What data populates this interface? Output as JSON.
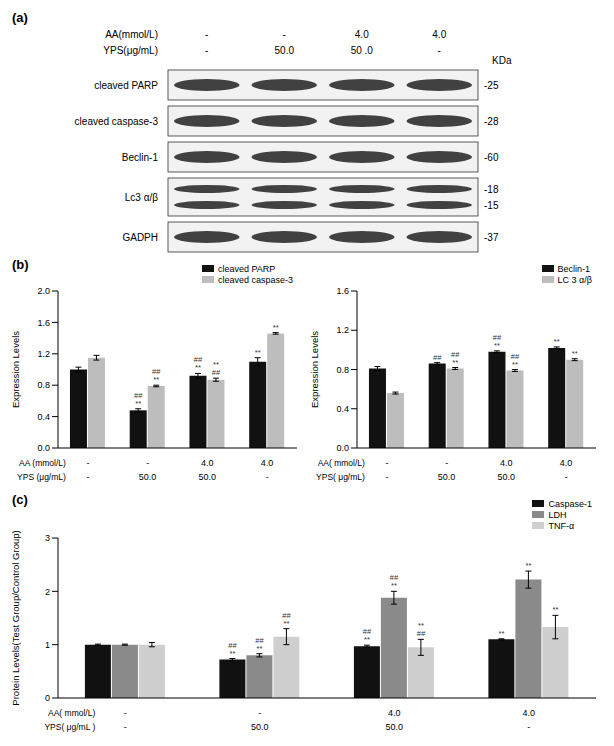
{
  "chart_data": [
    {
      "type": "western_blot",
      "title": "(a)",
      "conditions": [
        {
          "label": "AA(mmol/L)",
          "values": [
            "-",
            "-",
            "4.0",
            "4.0"
          ]
        },
        {
          "label": "YPS(μg/mL)",
          "values": [
            "-",
            "50.0",
            "50 .0",
            "-"
          ]
        }
      ],
      "unit_label": "KDa",
      "proteins": [
        {
          "name": "cleaved PARP",
          "mw": [
            "-25"
          ]
        },
        {
          "name": "cleaved caspase-3",
          "mw": [
            "-28"
          ]
        },
        {
          "name": "Beclin-1",
          "mw": [
            "-60"
          ]
        },
        {
          "name": "Lc3 α/β",
          "mw": [
            "-18",
            "-15"
          ]
        },
        {
          "name": "GADPH",
          "mw": [
            "-37"
          ]
        }
      ]
    },
    {
      "type": "bar",
      "title": "(b)",
      "y_label": "Expression Levels",
      "x_rows": [
        {
          "label": "AA (mmol/L)",
          "values": [
            "-",
            "-",
            "4.0",
            "4.0"
          ]
        },
        {
          "label": "YPS (μg/mL)",
          "values": [
            "-",
            "50.0",
            "50.0",
            "-"
          ]
        }
      ],
      "ylim": [
        0,
        2
      ],
      "yticks": [
        {
          "value": 0,
          "label": "0.0"
        },
        0.4,
        0.8,
        1.2,
        1.6,
        {
          "value": 2,
          "label": "2.0"
        }
      ],
      "legend": "upper right",
      "series": [
        {
          "name": "cleaved PARP",
          "color": "#111111",
          "values": [
            1.0,
            0.48,
            0.92,
            1.1
          ],
          "errors": [
            0.03,
            0.02,
            0.03,
            0.05
          ],
          "annotations": [
            null,
            [
              "##",
              "**"
            ],
            [
              "##",
              "**"
            ],
            [
              "**"
            ]
          ]
        },
        {
          "name": "cleaved caspase-3",
          "color": "#bdbdbd",
          "values": [
            1.15,
            0.79,
            0.87,
            1.46
          ],
          "errors": [
            0.03,
            0.01,
            0.02,
            0.01
          ],
          "annotations": [
            null,
            [
              "##",
              "**"
            ],
            [
              "**",
              "##"
            ],
            [
              "**"
            ]
          ]
        }
      ]
    },
    {
      "type": "bar",
      "y_label": "Expression Levels",
      "x_rows": [
        {
          "label": "AA( mmol/L)",
          "values": [
            "-",
            "-",
            "4.0",
            "4.0"
          ]
        },
        {
          "label": "YPS( μg/mL)",
          "values": [
            "-",
            "50.0",
            "50.0",
            "-"
          ]
        }
      ],
      "ylim": [
        0,
        1.6
      ],
      "yticks": [
        {
          "value": 0,
          "label": "0.0"
        },
        0.4,
        0.8,
        1.2,
        1.6
      ],
      "legend": "upper right",
      "series": [
        {
          "name": "Beclin-1",
          "color": "#111111",
          "values": [
            0.81,
            0.86,
            0.98,
            1.02
          ],
          "errors": [
            0.02,
            0.01,
            0.01,
            0.01
          ],
          "annotations": [
            null,
            [
              "##"
            ],
            [
              "##",
              "**"
            ],
            [
              "**"
            ]
          ]
        },
        {
          "name": "LC 3 α/β",
          "color": "#bdbdbd",
          "values": [
            0.56,
            0.81,
            0.79,
            0.9
          ],
          "errors": [
            0.01,
            0.01,
            0.01,
            0.01
          ],
          "annotations": [
            null,
            [
              "##",
              "**"
            ],
            [
              "##",
              "**"
            ],
            [
              "**"
            ]
          ]
        }
      ]
    },
    {
      "type": "bar",
      "title": "(c)",
      "y_label": "Protein Levels(Test Group/Control Group)",
      "x_rows": [
        {
          "label": "AA( mmol/L)",
          "values": [
            "-",
            "-",
            "4.0",
            "4.0"
          ]
        },
        {
          "label": "YPS( μg/mL )",
          "values": [
            "-",
            "50.0",
            "50.0",
            "-"
          ]
        }
      ],
      "ylim": [
        0,
        3
      ],
      "yticks": [
        0,
        1,
        2,
        3
      ],
      "legend": "upper right",
      "series": [
        {
          "name": "Caspase-1",
          "color": "#111111",
          "values": [
            1.0,
            0.72,
            0.97,
            1.1
          ],
          "errors": [
            0.01,
            0.02,
            0.02,
            0.01
          ],
          "annotations": [
            null,
            [
              "##",
              "**"
            ],
            [
              "##",
              "**"
            ],
            [
              "**"
            ]
          ]
        },
        {
          "name": "LDH",
          "color": "#8a8a8a",
          "values": [
            1.0,
            0.8,
            1.88,
            2.22
          ],
          "errors": [
            0.01,
            0.03,
            0.12,
            0.16
          ],
          "annotations": [
            null,
            [
              "##",
              "**"
            ],
            [
              "##",
              "**"
            ],
            [
              "**"
            ]
          ]
        },
        {
          "name": "TNF-α",
          "color": "#cfcfcf",
          "values": [
            1.0,
            1.15,
            0.95,
            1.33
          ],
          "errors": [
            0.04,
            0.15,
            0.15,
            0.22
          ],
          "annotations": [
            null,
            [
              "##",
              "**"
            ],
            [
              "**",
              "##"
            ],
            [
              "**"
            ]
          ]
        }
      ]
    }
  ]
}
